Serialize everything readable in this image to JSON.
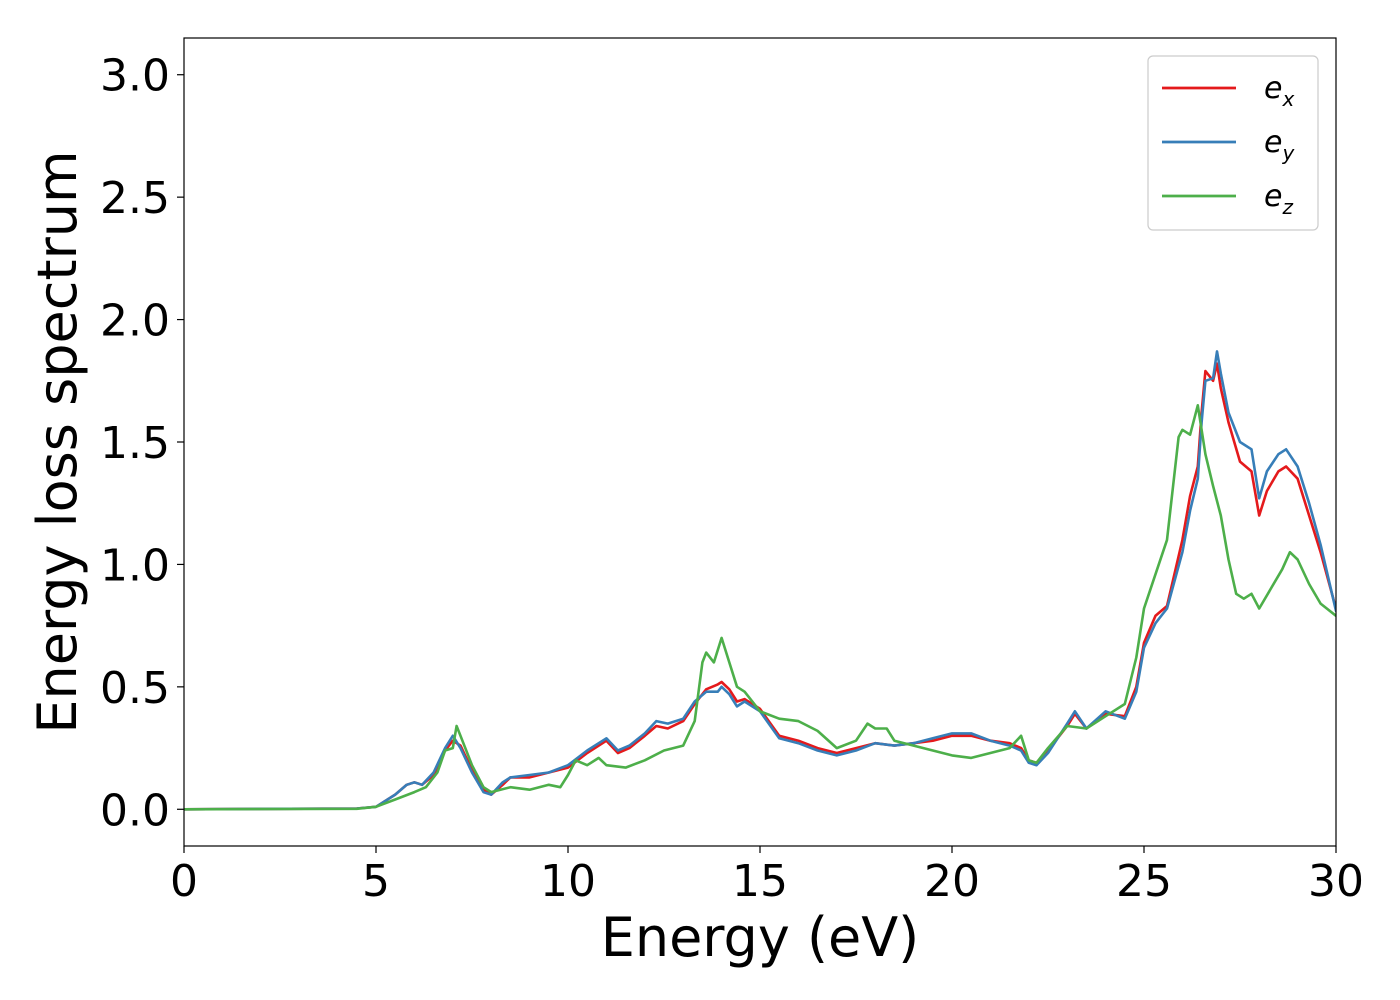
{
  "chart_data": {
    "type": "line",
    "title": "",
    "xlabel": "Energy (eV)",
    "ylabel": "Energy loss spectrum",
    "xlim": [
      0,
      30
    ],
    "ylim": [
      -0.15,
      3.15
    ],
    "xticks": [
      0,
      5,
      10,
      15,
      20,
      25,
      30
    ],
    "xtick_labels": [
      "0",
      "5",
      "10",
      "15",
      "20",
      "25",
      "30"
    ],
    "yticks": [
      0.0,
      0.5,
      1.0,
      1.5,
      2.0,
      2.5,
      3.0
    ],
    "ytick_labels": [
      "0.0",
      "0.5",
      "1.0",
      "1.5",
      "2.0",
      "2.5",
      "3.0"
    ],
    "grid": false,
    "legend_position": "top-right",
    "series": [
      {
        "name": "e",
        "subscript": "x",
        "color": "#e41a1c",
        "points": [
          [
            0,
            0.0
          ],
          [
            4.5,
            0.003
          ],
          [
            5.0,
            0.01
          ],
          [
            5.5,
            0.06
          ],
          [
            5.8,
            0.1
          ],
          [
            6.0,
            0.11
          ],
          [
            6.2,
            0.1
          ],
          [
            6.5,
            0.14
          ],
          [
            6.8,
            0.24
          ],
          [
            7.0,
            0.28
          ],
          [
            7.2,
            0.26
          ],
          [
            7.5,
            0.16
          ],
          [
            7.8,
            0.08
          ],
          [
            8.0,
            0.06
          ],
          [
            8.3,
            0.1
          ],
          [
            8.5,
            0.13
          ],
          [
            9.0,
            0.13
          ],
          [
            9.5,
            0.15
          ],
          [
            10.0,
            0.17
          ],
          [
            10.5,
            0.23
          ],
          [
            11.0,
            0.28
          ],
          [
            11.3,
            0.23
          ],
          [
            11.6,
            0.25
          ],
          [
            12.0,
            0.3
          ],
          [
            12.3,
            0.34
          ],
          [
            12.6,
            0.33
          ],
          [
            13.0,
            0.36
          ],
          [
            13.3,
            0.43
          ],
          [
            13.6,
            0.49
          ],
          [
            13.9,
            0.51
          ],
          [
            14.0,
            0.52
          ],
          [
            14.2,
            0.49
          ],
          [
            14.4,
            0.44
          ],
          [
            14.6,
            0.45
          ],
          [
            15.0,
            0.41
          ],
          [
            15.5,
            0.3
          ],
          [
            16.0,
            0.28
          ],
          [
            16.5,
            0.25
          ],
          [
            17.0,
            0.23
          ],
          [
            17.5,
            0.25
          ],
          [
            18.0,
            0.27
          ],
          [
            18.5,
            0.26
          ],
          [
            19.0,
            0.27
          ],
          [
            19.5,
            0.28
          ],
          [
            20.0,
            0.3
          ],
          [
            20.5,
            0.3
          ],
          [
            21.0,
            0.28
          ],
          [
            21.5,
            0.27
          ],
          [
            21.8,
            0.25
          ],
          [
            22.0,
            0.2
          ],
          [
            22.2,
            0.19
          ],
          [
            22.5,
            0.24
          ],
          [
            23.0,
            0.34
          ],
          [
            23.2,
            0.39
          ],
          [
            23.5,
            0.33
          ],
          [
            24.0,
            0.39
          ],
          [
            24.5,
            0.38
          ],
          [
            24.8,
            0.5
          ],
          [
            25.0,
            0.68
          ],
          [
            25.3,
            0.79
          ],
          [
            25.6,
            0.83
          ],
          [
            26.0,
            1.1
          ],
          [
            26.2,
            1.28
          ],
          [
            26.4,
            1.4
          ],
          [
            26.5,
            1.62
          ],
          [
            26.6,
            1.79
          ],
          [
            26.8,
            1.75
          ],
          [
            26.9,
            1.82
          ],
          [
            27.0,
            1.72
          ],
          [
            27.2,
            1.58
          ],
          [
            27.5,
            1.42
          ],
          [
            27.8,
            1.38
          ],
          [
            28.0,
            1.2
          ],
          [
            28.2,
            1.3
          ],
          [
            28.5,
            1.38
          ],
          [
            28.7,
            1.4
          ],
          [
            29.0,
            1.35
          ],
          [
            29.3,
            1.2
          ],
          [
            29.6,
            1.05
          ],
          [
            30.0,
            0.82
          ]
        ]
      },
      {
        "name": "e",
        "subscript": "y",
        "color": "#377eb8",
        "points": [
          [
            0,
            0.0
          ],
          [
            4.5,
            0.003
          ],
          [
            5.0,
            0.01
          ],
          [
            5.5,
            0.06
          ],
          [
            5.8,
            0.1
          ],
          [
            6.0,
            0.11
          ],
          [
            6.2,
            0.1
          ],
          [
            6.5,
            0.15
          ],
          [
            6.8,
            0.25
          ],
          [
            7.0,
            0.3
          ],
          [
            7.2,
            0.25
          ],
          [
            7.5,
            0.15
          ],
          [
            7.8,
            0.07
          ],
          [
            8.0,
            0.06
          ],
          [
            8.3,
            0.11
          ],
          [
            8.5,
            0.13
          ],
          [
            9.0,
            0.14
          ],
          [
            9.5,
            0.15
          ],
          [
            10.0,
            0.18
          ],
          [
            10.5,
            0.24
          ],
          [
            11.0,
            0.29
          ],
          [
            11.3,
            0.24
          ],
          [
            11.6,
            0.26
          ],
          [
            12.0,
            0.31
          ],
          [
            12.3,
            0.36
          ],
          [
            12.6,
            0.35
          ],
          [
            13.0,
            0.37
          ],
          [
            13.3,
            0.44
          ],
          [
            13.6,
            0.48
          ],
          [
            13.9,
            0.48
          ],
          [
            14.0,
            0.5
          ],
          [
            14.2,
            0.47
          ],
          [
            14.4,
            0.42
          ],
          [
            14.6,
            0.44
          ],
          [
            15.0,
            0.4
          ],
          [
            15.5,
            0.29
          ],
          [
            16.0,
            0.27
          ],
          [
            16.5,
            0.24
          ],
          [
            17.0,
            0.22
          ],
          [
            17.5,
            0.24
          ],
          [
            18.0,
            0.27
          ],
          [
            18.5,
            0.26
          ],
          [
            19.0,
            0.27
          ],
          [
            19.5,
            0.29
          ],
          [
            20.0,
            0.31
          ],
          [
            20.5,
            0.31
          ],
          [
            21.0,
            0.28
          ],
          [
            21.5,
            0.26
          ],
          [
            21.8,
            0.24
          ],
          [
            22.0,
            0.19
          ],
          [
            22.2,
            0.18
          ],
          [
            22.5,
            0.23
          ],
          [
            23.0,
            0.35
          ],
          [
            23.2,
            0.4
          ],
          [
            23.5,
            0.33
          ],
          [
            24.0,
            0.4
          ],
          [
            24.5,
            0.37
          ],
          [
            24.8,
            0.48
          ],
          [
            25.0,
            0.66
          ],
          [
            25.3,
            0.76
          ],
          [
            25.6,
            0.82
          ],
          [
            26.0,
            1.05
          ],
          [
            26.2,
            1.22
          ],
          [
            26.4,
            1.35
          ],
          [
            26.5,
            1.58
          ],
          [
            26.6,
            1.75
          ],
          [
            26.8,
            1.76
          ],
          [
            26.9,
            1.87
          ],
          [
            27.0,
            1.78
          ],
          [
            27.2,
            1.62
          ],
          [
            27.5,
            1.5
          ],
          [
            27.8,
            1.47
          ],
          [
            28.0,
            1.27
          ],
          [
            28.2,
            1.38
          ],
          [
            28.5,
            1.45
          ],
          [
            28.7,
            1.47
          ],
          [
            29.0,
            1.4
          ],
          [
            29.3,
            1.25
          ],
          [
            29.6,
            1.08
          ],
          [
            30.0,
            0.81
          ]
        ]
      },
      {
        "name": "e",
        "subscript": "z",
        "color": "#4daf4a",
        "points": [
          [
            0,
            0.0
          ],
          [
            4.5,
            0.002
          ],
          [
            5.0,
            0.01
          ],
          [
            5.5,
            0.04
          ],
          [
            6.0,
            0.07
          ],
          [
            6.3,
            0.09
          ],
          [
            6.6,
            0.15
          ],
          [
            6.8,
            0.24
          ],
          [
            7.0,
            0.25
          ],
          [
            7.1,
            0.34
          ],
          [
            7.2,
            0.3
          ],
          [
            7.5,
            0.18
          ],
          [
            7.8,
            0.09
          ],
          [
            8.0,
            0.07
          ],
          [
            8.5,
            0.09
          ],
          [
            9.0,
            0.08
          ],
          [
            9.5,
            0.1
          ],
          [
            9.8,
            0.09
          ],
          [
            10.0,
            0.14
          ],
          [
            10.2,
            0.2
          ],
          [
            10.5,
            0.18
          ],
          [
            10.8,
            0.21
          ],
          [
            11.0,
            0.18
          ],
          [
            11.5,
            0.17
          ],
          [
            12.0,
            0.2
          ],
          [
            12.5,
            0.24
          ],
          [
            13.0,
            0.26
          ],
          [
            13.3,
            0.36
          ],
          [
            13.5,
            0.6
          ],
          [
            13.6,
            0.64
          ],
          [
            13.8,
            0.6
          ],
          [
            14.0,
            0.7
          ],
          [
            14.2,
            0.6
          ],
          [
            14.4,
            0.5
          ],
          [
            14.6,
            0.48
          ],
          [
            15.0,
            0.4
          ],
          [
            15.5,
            0.37
          ],
          [
            16.0,
            0.36
          ],
          [
            16.5,
            0.32
          ],
          [
            17.0,
            0.25
          ],
          [
            17.5,
            0.28
          ],
          [
            17.8,
            0.35
          ],
          [
            18.0,
            0.33
          ],
          [
            18.3,
            0.33
          ],
          [
            18.5,
            0.28
          ],
          [
            19.0,
            0.26
          ],
          [
            19.5,
            0.24
          ],
          [
            20.0,
            0.22
          ],
          [
            20.5,
            0.21
          ],
          [
            21.0,
            0.23
          ],
          [
            21.5,
            0.25
          ],
          [
            21.8,
            0.3
          ],
          [
            22.0,
            0.2
          ],
          [
            22.2,
            0.19
          ],
          [
            22.5,
            0.25
          ],
          [
            23.0,
            0.34
          ],
          [
            23.5,
            0.33
          ],
          [
            24.0,
            0.38
          ],
          [
            24.5,
            0.43
          ],
          [
            24.8,
            0.62
          ],
          [
            25.0,
            0.82
          ],
          [
            25.3,
            0.96
          ],
          [
            25.6,
            1.1
          ],
          [
            25.9,
            1.52
          ],
          [
            26.0,
            1.55
          ],
          [
            26.2,
            1.53
          ],
          [
            26.4,
            1.65
          ],
          [
            26.6,
            1.45
          ],
          [
            26.8,
            1.32
          ],
          [
            27.0,
            1.2
          ],
          [
            27.2,
            1.02
          ],
          [
            27.4,
            0.88
          ],
          [
            27.6,
            0.86
          ],
          [
            27.8,
            0.88
          ],
          [
            28.0,
            0.82
          ],
          [
            28.3,
            0.9
          ],
          [
            28.6,
            0.98
          ],
          [
            28.8,
            1.05
          ],
          [
            29.0,
            1.02
          ],
          [
            29.3,
            0.92
          ],
          [
            29.6,
            0.84
          ],
          [
            30.0,
            0.79
          ]
        ]
      }
    ]
  }
}
